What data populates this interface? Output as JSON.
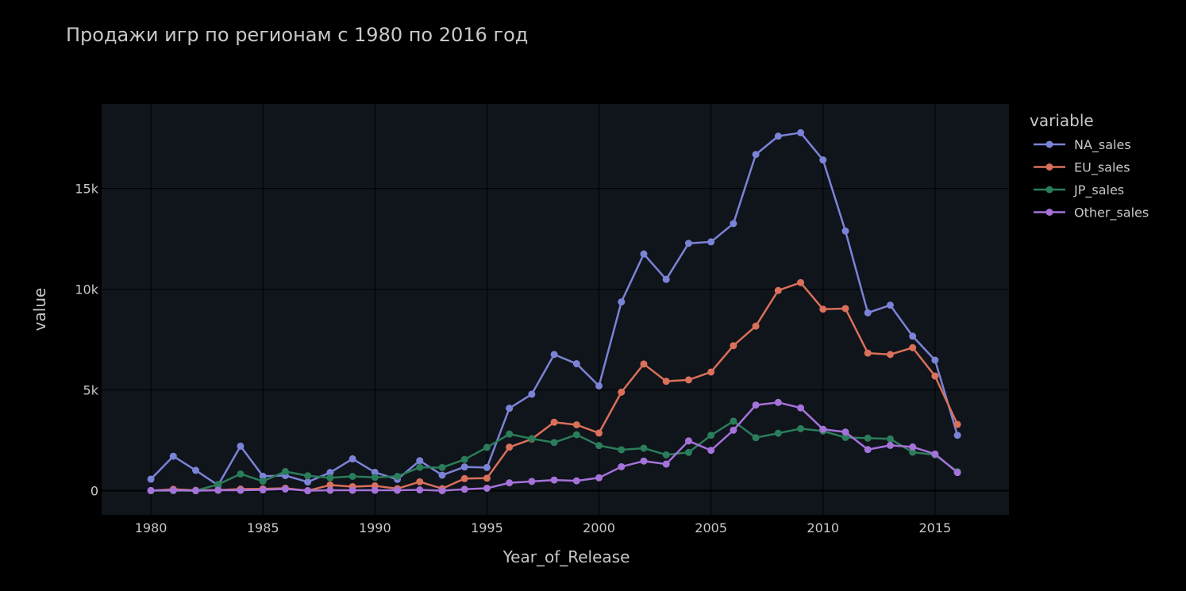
{
  "chart_data": {
    "type": "line",
    "title": "Продажи игр по регионам с 1980 по 2016 год",
    "xlabel": "Year_of_Release",
    "ylabel": "value",
    "xlim": [
      1977.8,
      2018.3
    ],
    "ylim": [
      -1200,
      19200
    ],
    "x_ticks": [
      1980,
      1985,
      1990,
      1995,
      2000,
      2005,
      2010,
      2015
    ],
    "y_ticks": [
      0,
      5000,
      10000,
      15000
    ],
    "y_tick_labels": [
      "0",
      "5k",
      "10k",
      "15k"
    ],
    "legend_title": "variable",
    "legend_position": "right",
    "grid": true,
    "colors": {
      "background": "#000000",
      "plot_background": "#10141b",
      "grid": "#000000",
      "zero_line": "#000000",
      "NA_sales": "#7b83d6",
      "EU_sales": "#d9705a",
      "JP_sales": "#2a7d5a",
      "Other_sales": "#a572d9"
    },
    "x": [
      1980,
      1981,
      1982,
      1983,
      1984,
      1985,
      1986,
      1987,
      1988,
      1989,
      1990,
      1991,
      1992,
      1993,
      1994,
      1995,
      1996,
      1997,
      1998,
      1999,
      2000,
      2001,
      2002,
      2003,
      2004,
      2005,
      2006,
      2007,
      2008,
      2009,
      2010,
      2011,
      2012,
      2013,
      2014,
      2015,
      2016
    ],
    "series": [
      {
        "name": "NA_sales",
        "values": [
          570,
          1710,
          1010,
          270,
          2210,
          720,
          750,
          430,
          900,
          1580,
          910,
          560,
          1490,
          770,
          1180,
          1150,
          4090,
          4790,
          6760,
          6300,
          5200,
          9370,
          11750,
          10490,
          12280,
          12350,
          13260,
          16690,
          17600,
          17770,
          16420,
          12890,
          8830,
          9210,
          7670,
          6480,
          2750
        ]
      },
      {
        "name": "EU_sales",
        "values": [
          0,
          70,
          20,
          30,
          80,
          90,
          120,
          0,
          280,
          200,
          240,
          100,
          440,
          100,
          600,
          620,
          2160,
          2560,
          3400,
          3270,
          2860,
          4890,
          6290,
          5430,
          5500,
          5890,
          7200,
          8170,
          9940,
          10330,
          9010,
          9040,
          6830,
          6760,
          7100,
          5690,
          3290
        ]
      },
      {
        "name": "JP_sales",
        "values": [
          0,
          0,
          0,
          310,
          830,
          470,
          950,
          740,
          640,
          710,
          660,
          710,
          1160,
          1150,
          1550,
          2150,
          2810,
          2580,
          2390,
          2780,
          2240,
          2030,
          2110,
          1780,
          1900,
          2750,
          3450,
          2630,
          2850,
          3080,
          2960,
          2640,
          2610,
          2570,
          1910,
          1780,
          940
        ]
      },
      {
        "name": "Other_sales",
        "values": [
          10,
          20,
          0,
          20,
          20,
          40,
          80,
          0,
          20,
          20,
          20,
          20,
          40,
          0,
          70,
          120,
          390,
          460,
          530,
          490,
          640,
          1190,
          1470,
          1320,
          2470,
          2000,
          3000,
          4250,
          4380,
          4110,
          3050,
          2910,
          2040,
          2250,
          2170,
          1820,
          900
        ]
      }
    ]
  }
}
